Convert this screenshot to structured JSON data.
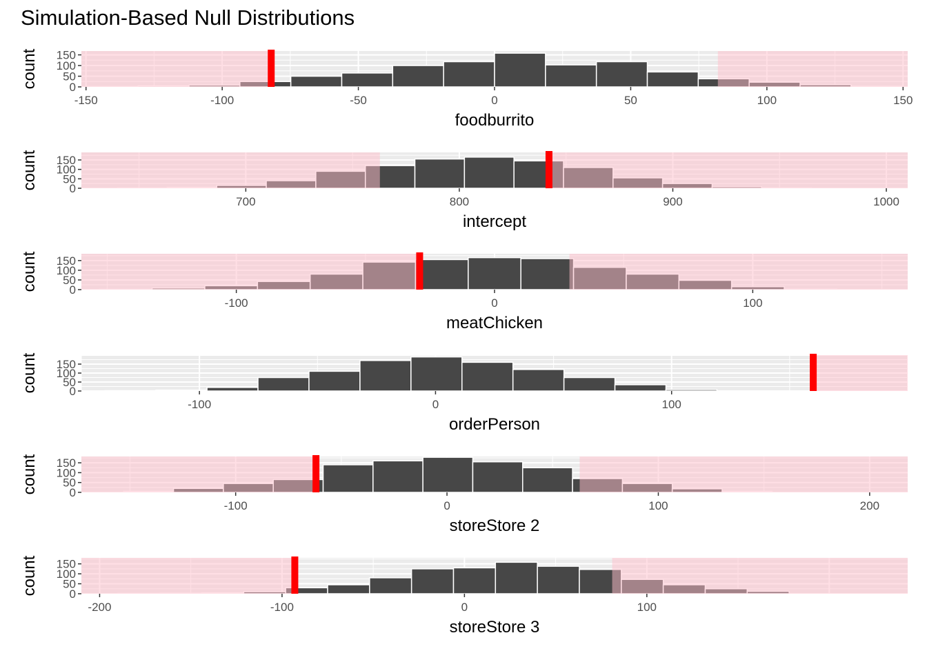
{
  "title": "Simulation-Based Null Distributions",
  "colors": {
    "bar_fill": "#474747",
    "bar_stroke": "#ffffff",
    "shade_fill": "#b3868e",
    "shade_light": "#ffc0cb",
    "obs_line": "#ff0000",
    "panel_bg": "#ebebeb",
    "grid": "#ffffff"
  },
  "chart_data": [
    {
      "type": "bar",
      "xlabel": "foodburrito",
      "ylabel": "count",
      "xlim": [
        -151.7,
        151.7
      ],
      "ylim": [
        0,
        168
      ],
      "xticks": [
        -150,
        -100,
        -50,
        0,
        50,
        100,
        150
      ],
      "yticks": [
        0,
        50,
        100,
        150
      ],
      "bin_width": 18.7,
      "bin_start": -149.6,
      "counts": [
        2,
        5,
        8,
        25,
        50,
        65,
        100,
        118,
        158,
        103,
        118,
        70,
        38,
        22,
        10,
        3
      ],
      "observed": -82,
      "shade": "both"
    },
    {
      "type": "bar",
      "xlabel": "intercept",
      "ylabel": "count",
      "xlim": [
        623,
        1010
      ],
      "ylim": [
        0,
        190
      ],
      "xticks": [
        700,
        800,
        900,
        1000
      ],
      "yticks": [
        0,
        50,
        100,
        150
      ],
      "bin_width": 23.2,
      "bin_start": 640,
      "counts": [
        2,
        5,
        15,
        40,
        90,
        120,
        155,
        165,
        145,
        110,
        55,
        25,
        8,
        2
      ],
      "observed": 842,
      "shade": "both"
    },
    {
      "type": "bar",
      "xlabel": "meatChicken",
      "ylabel": "count",
      "xlim": [
        -160,
        160
      ],
      "ylim": [
        0,
        185
      ],
      "xticks": [
        -100,
        0,
        100
      ],
      "yticks": [
        0,
        50,
        100,
        150
      ],
      "bin_width": 20.4,
      "bin_start": -153,
      "counts": [
        2,
        8,
        20,
        42,
        80,
        142,
        155,
        165,
        160,
        115,
        80,
        48,
        15,
        3,
        1
      ],
      "observed": -29,
      "shade": "both"
    },
    {
      "type": "bar",
      "xlabel": "orderPerson",
      "ylabel": "count",
      "xlim": [
        -150,
        200
      ],
      "ylim": [
        0,
        200
      ],
      "xticks": [
        -100,
        0,
        100
      ],
      "yticks": [
        0,
        50,
        100,
        150
      ],
      "bin_width": 21.6,
      "bin_start": -140,
      "counts": [
        2,
        5,
        20,
        75,
        110,
        170,
        190,
        160,
        120,
        75,
        35,
        8
      ],
      "observed": 160,
      "shade": "both"
    },
    {
      "type": "bar",
      "xlabel": "storeStore 2",
      "ylabel": "count",
      "xlim": [
        -173,
        218
      ],
      "ylim": [
        0,
        182
      ],
      "xticks": [
        -100,
        0,
        100,
        200
      ],
      "yticks": [
        0,
        50,
        100,
        150
      ],
      "bin_width": 23.6,
      "bin_start": -153,
      "counts": [
        5,
        20,
        45,
        65,
        140,
        160,
        178,
        155,
        125,
        70,
        45,
        18,
        5
      ],
      "observed": -62,
      "shade": "both"
    },
    {
      "type": "bar",
      "xlabel": "storeStore 3",
      "ylabel": "count",
      "xlim": [
        -210,
        243
      ],
      "ylim": [
        0,
        180
      ],
      "xticks": [
        -200,
        -100,
        0,
        100
      ],
      "yticks": [
        0,
        50,
        100,
        150
      ],
      "bin_width": 23,
      "bin_start": -190,
      "counts": [
        2,
        3,
        5,
        10,
        30,
        45,
        80,
        125,
        130,
        158,
        138,
        122,
        72,
        45,
        25,
        12
      ],
      "observed": -93,
      "shade": "both"
    }
  ]
}
